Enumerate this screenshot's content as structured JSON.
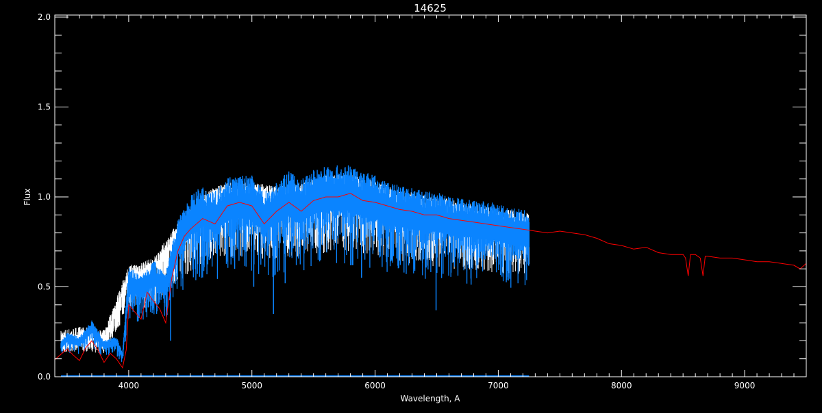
{
  "chart_data": {
    "type": "line",
    "title": "14625",
    "xlabel": "Wavelength, A",
    "ylabel": "Flux",
    "xlim": [
      3400,
      9500
    ],
    "ylim": [
      0.0,
      2.0
    ],
    "xticks": [
      "4000",
      "5000",
      "6000",
      "7000",
      "8000",
      "9000"
    ],
    "yticks": [
      "0.0",
      "0.5",
      "1.0",
      "1.5",
      "2.0"
    ],
    "grid": false,
    "background": "#000000",
    "series": [
      {
        "color": "#ff0000",
        "x": [
          3400,
          3500,
          3550,
          3600,
          3650,
          3700,
          3750,
          3800,
          3850,
          3900,
          3950,
          3980,
          4000,
          4050,
          4100,
          4150,
          4200,
          4250,
          4300,
          4350,
          4400,
          4450,
          4500,
          4600,
          4700,
          4800,
          4900,
          5000,
          5100,
          5200,
          5300,
          5400,
          5500,
          5600,
          5700,
          5800,
          5900,
          6000,
          6100,
          6200,
          6300,
          6400,
          6500,
          6600,
          6700,
          6800,
          6900,
          7000,
          7100,
          7200,
          7300,
          7400,
          7500,
          7600,
          7700,
          7800,
          7900,
          8000,
          8100,
          8200,
          8300,
          8400,
          8500,
          8520,
          8542,
          8560,
          8600,
          8640,
          8662,
          8680,
          8700,
          8800,
          8900,
          9000,
          9100,
          9200,
          9300,
          9400,
          9450,
          9500
        ],
        "y": [
          0.095,
          0.155,
          0.12,
          0.09,
          0.16,
          0.2,
          0.15,
          0.08,
          0.13,
          0.1,
          0.05,
          0.15,
          0.4,
          0.36,
          0.32,
          0.47,
          0.42,
          0.38,
          0.3,
          0.55,
          0.7,
          0.78,
          0.82,
          0.88,
          0.85,
          0.95,
          0.97,
          0.95,
          0.85,
          0.92,
          0.97,
          0.92,
          0.98,
          1.0,
          1.0,
          1.02,
          0.98,
          0.97,
          0.95,
          0.93,
          0.92,
          0.9,
          0.9,
          0.88,
          0.87,
          0.86,
          0.85,
          0.84,
          0.83,
          0.82,
          0.81,
          0.8,
          0.81,
          0.8,
          0.79,
          0.77,
          0.74,
          0.73,
          0.71,
          0.72,
          0.69,
          0.68,
          0.68,
          0.66,
          0.56,
          0.68,
          0.68,
          0.66,
          0.56,
          0.67,
          0.67,
          0.66,
          0.66,
          0.65,
          0.64,
          0.64,
          0.63,
          0.62,
          0.6,
          0.63
        ]
      },
      {
        "color": "#0a84ff",
        "x": [
          3450,
          3500,
          3600,
          3700,
          3800,
          3900,
          3950,
          4000,
          4100,
          4200,
          4300,
          4400,
          4500,
          4600,
          4700,
          4800,
          4900,
          5000,
          5100,
          5200,
          5300,
          5400,
          5500,
          5600,
          5700,
          5800,
          5900,
          6000,
          6100,
          6200,
          6300,
          6400,
          6500,
          6600,
          6700,
          6800,
          6900,
          7000,
          7100,
          7200,
          7250
        ],
        "y": [
          0.18,
          0.22,
          0.2,
          0.28,
          0.18,
          0.2,
          0.12,
          0.55,
          0.5,
          0.58,
          0.52,
          0.78,
          0.9,
          0.95,
          0.92,
          1.0,
          1.0,
          1.0,
          0.92,
          0.97,
          1.02,
          0.98,
          1.03,
          1.05,
          1.05,
          1.05,
          1.02,
          1.0,
          0.97,
          0.95,
          0.94,
          0.92,
          0.92,
          0.9,
          0.89,
          0.88,
          0.87,
          0.86,
          0.84,
          0.83,
          0.82
        ],
        "absorption_lines": [
          [
            5175,
            0.35
          ],
          [
            5270,
            0.52
          ],
          [
            5890,
            0.55
          ],
          [
            6495,
            0.37
          ],
          [
            4340,
            0.2
          ],
          [
            4860,
            0.6
          ],
          [
            5015,
            0.5
          ],
          [
            6563,
            0.7
          ],
          [
            4226,
            0.35
          ]
        ]
      },
      {
        "color": "#ffffff",
        "x": [
          3450,
          3600,
          3800,
          4000,
          4200,
          4400,
          4600,
          4800,
          5000,
          5200,
          5400,
          5600,
          5800,
          6000,
          6200,
          6400,
          6600,
          6800,
          7000,
          7250
        ],
        "y": [
          0.2,
          0.22,
          0.2,
          0.56,
          0.6,
          0.8,
          0.97,
          1.02,
          1.02,
          1.0,
          1.02,
          1.06,
          1.07,
          1.03,
          0.98,
          0.95,
          0.93,
          0.9,
          0.88,
          0.85
        ]
      },
      {
        "color": "#0a84ff",
        "x": [
          3450,
          7250
        ],
        "y": [
          0.0,
          0.0
        ]
      }
    ]
  }
}
